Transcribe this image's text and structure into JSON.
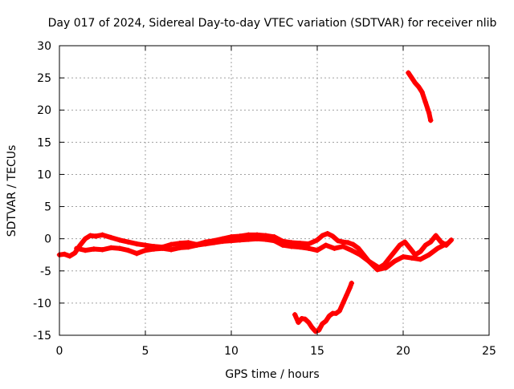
{
  "chart_data": {
    "type": "scatter",
    "title": "Day 017 of 2024, Sidereal Day-to-day VTEC variation (SDTVAR) for receiver nlib",
    "xlabel": "GPS time / hours",
    "ylabel": "SDTVAR / TECUs",
    "xlim": [
      0,
      25
    ],
    "ylim": [
      -15,
      30
    ],
    "xticks": [
      0,
      5,
      10,
      15,
      20,
      25
    ],
    "yticks": [
      -15,
      -10,
      -5,
      0,
      5,
      10,
      15,
      20,
      25,
      30
    ],
    "grid": true,
    "color": "#ff0000",
    "series": [
      {
        "name": "main-band-upper",
        "x": [
          0.0,
          0.3,
          0.6,
          0.9,
          1.2,
          1.5,
          1.8,
          2.1,
          2.5,
          3.0,
          3.5,
          4.0,
          4.5,
          5.0,
          5.5,
          6.0,
          6.5,
          7.0,
          7.5,
          8.0,
          8.5,
          9.0,
          9.5,
          10.0,
          10.5,
          11.0,
          11.5,
          12.0,
          12.5,
          13.0,
          13.5,
          14.0,
          14.5,
          15.0,
          15.3,
          15.6,
          15.9,
          16.2,
          16.5,
          16.8,
          17.1,
          17.4,
          17.7,
          18.0,
          18.3,
          18.6,
          18.9,
          19.2,
          19.5,
          19.8,
          20.1,
          20.4,
          20.7,
          21.0,
          21.3,
          21.6,
          21.9,
          22.2,
          22.5,
          22.8
        ],
        "y": [
          -2.5,
          -2.4,
          -2.7,
          -2.2,
          -1.0,
          0.0,
          0.5,
          0.4,
          0.6,
          0.2,
          -0.2,
          -0.5,
          -0.8,
          -1.0,
          -1.2,
          -1.3,
          -0.9,
          -0.7,
          -0.6,
          -0.9,
          -0.5,
          -0.3,
          0.0,
          0.3,
          0.4,
          0.6,
          0.6,
          0.5,
          0.3,
          -0.4,
          -0.6,
          -0.7,
          -0.8,
          -0.2,
          0.5,
          0.8,
          0.4,
          -0.3,
          -0.5,
          -0.6,
          -0.9,
          -1.5,
          -2.5,
          -3.5,
          -4.0,
          -4.5,
          -4.0,
          -3.0,
          -2.0,
          -1.0,
          -0.5,
          -1.5,
          -2.5,
          -2.0,
          -1.0,
          -0.5,
          0.5,
          -0.5,
          -1.0,
          -0.2
        ]
      },
      {
        "name": "main-band-lower",
        "x": [
          1.0,
          1.5,
          2.0,
          2.5,
          3.0,
          3.5,
          4.0,
          4.5,
          5.0,
          5.5,
          6.0,
          6.5,
          7.0,
          7.5,
          8.0,
          8.5,
          9.0,
          9.5,
          10.0,
          10.5,
          11.0,
          11.5,
          12.0,
          12.5,
          13.0,
          13.5,
          14.0,
          14.5,
          15.0,
          15.5,
          16.0,
          16.5,
          17.0,
          17.5,
          18.0,
          18.5,
          19.0,
          19.5,
          20.0,
          20.5,
          21.0,
          21.5,
          22.0,
          22.5
        ],
        "y": [
          -1.5,
          -1.8,
          -1.6,
          -1.7,
          -1.4,
          -1.5,
          -1.8,
          -2.3,
          -1.8,
          -1.6,
          -1.5,
          -1.7,
          -1.4,
          -1.3,
          -1.0,
          -0.8,
          -0.6,
          -0.4,
          -0.3,
          -0.2,
          -0.1,
          0.0,
          -0.1,
          -0.3,
          -1.0,
          -1.2,
          -1.3,
          -1.5,
          -1.8,
          -1.0,
          -1.5,
          -1.2,
          -1.8,
          -2.5,
          -3.5,
          -4.8,
          -4.5,
          -3.5,
          -2.8,
          -3.0,
          -3.2,
          -2.5,
          -1.5,
          -0.8
        ]
      },
      {
        "name": "lower-arc",
        "x": [
          13.7,
          13.9,
          14.1,
          14.3,
          14.5,
          14.7,
          14.9,
          15.1,
          15.3,
          15.5,
          15.7,
          15.9,
          16.1,
          16.3,
          16.5,
          16.7,
          16.9,
          17.0
        ],
        "y": [
          -11.8,
          -13.0,
          -12.4,
          -12.5,
          -13.0,
          -13.8,
          -14.4,
          -14.2,
          -13.2,
          -12.8,
          -12.0,
          -11.6,
          -11.6,
          -11.2,
          -10.0,
          -8.8,
          -7.6,
          -6.9
        ]
      },
      {
        "name": "upper-arc",
        "x": [
          20.3,
          20.5,
          20.7,
          20.9,
          21.1,
          21.3,
          21.5,
          21.6
        ],
        "y": [
          25.8,
          25.0,
          24.2,
          23.6,
          22.8,
          21.2,
          19.6,
          18.4
        ]
      }
    ]
  }
}
